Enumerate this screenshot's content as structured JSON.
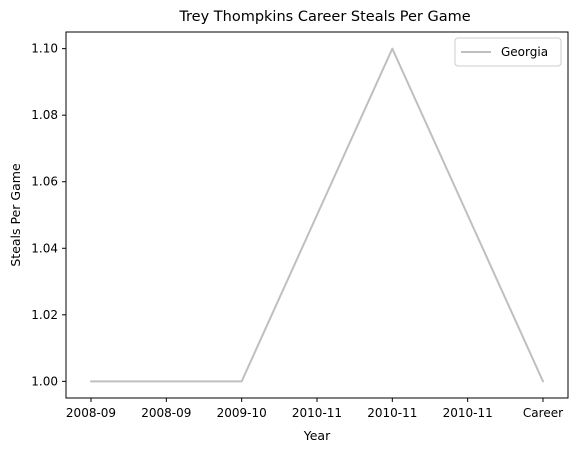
{
  "chart_data": {
    "type": "line",
    "title": "Trey Thompkins Career Steals Per Game",
    "xlabel": "Year",
    "ylabel": "Steals Per Game",
    "categories": [
      "2008-09",
      "2008-09",
      "2009-10",
      "2010-11",
      "2010-11",
      "2010-11",
      "Career"
    ],
    "series": [
      {
        "name": "Georgia",
        "color": "#bfbfbf",
        "values": [
          1.0,
          1.0,
          1.0,
          1.05,
          1.1,
          1.05,
          1.0
        ]
      }
    ],
    "ylim": [
      0.995,
      1.105
    ],
    "yticks": [
      1.0,
      1.02,
      1.04,
      1.06,
      1.08,
      1.1
    ],
    "ytick_labels": [
      "1.00",
      "1.02",
      "1.04",
      "1.06",
      "1.08",
      "1.10"
    ],
    "grid": false,
    "legend_position": "upper right"
  }
}
